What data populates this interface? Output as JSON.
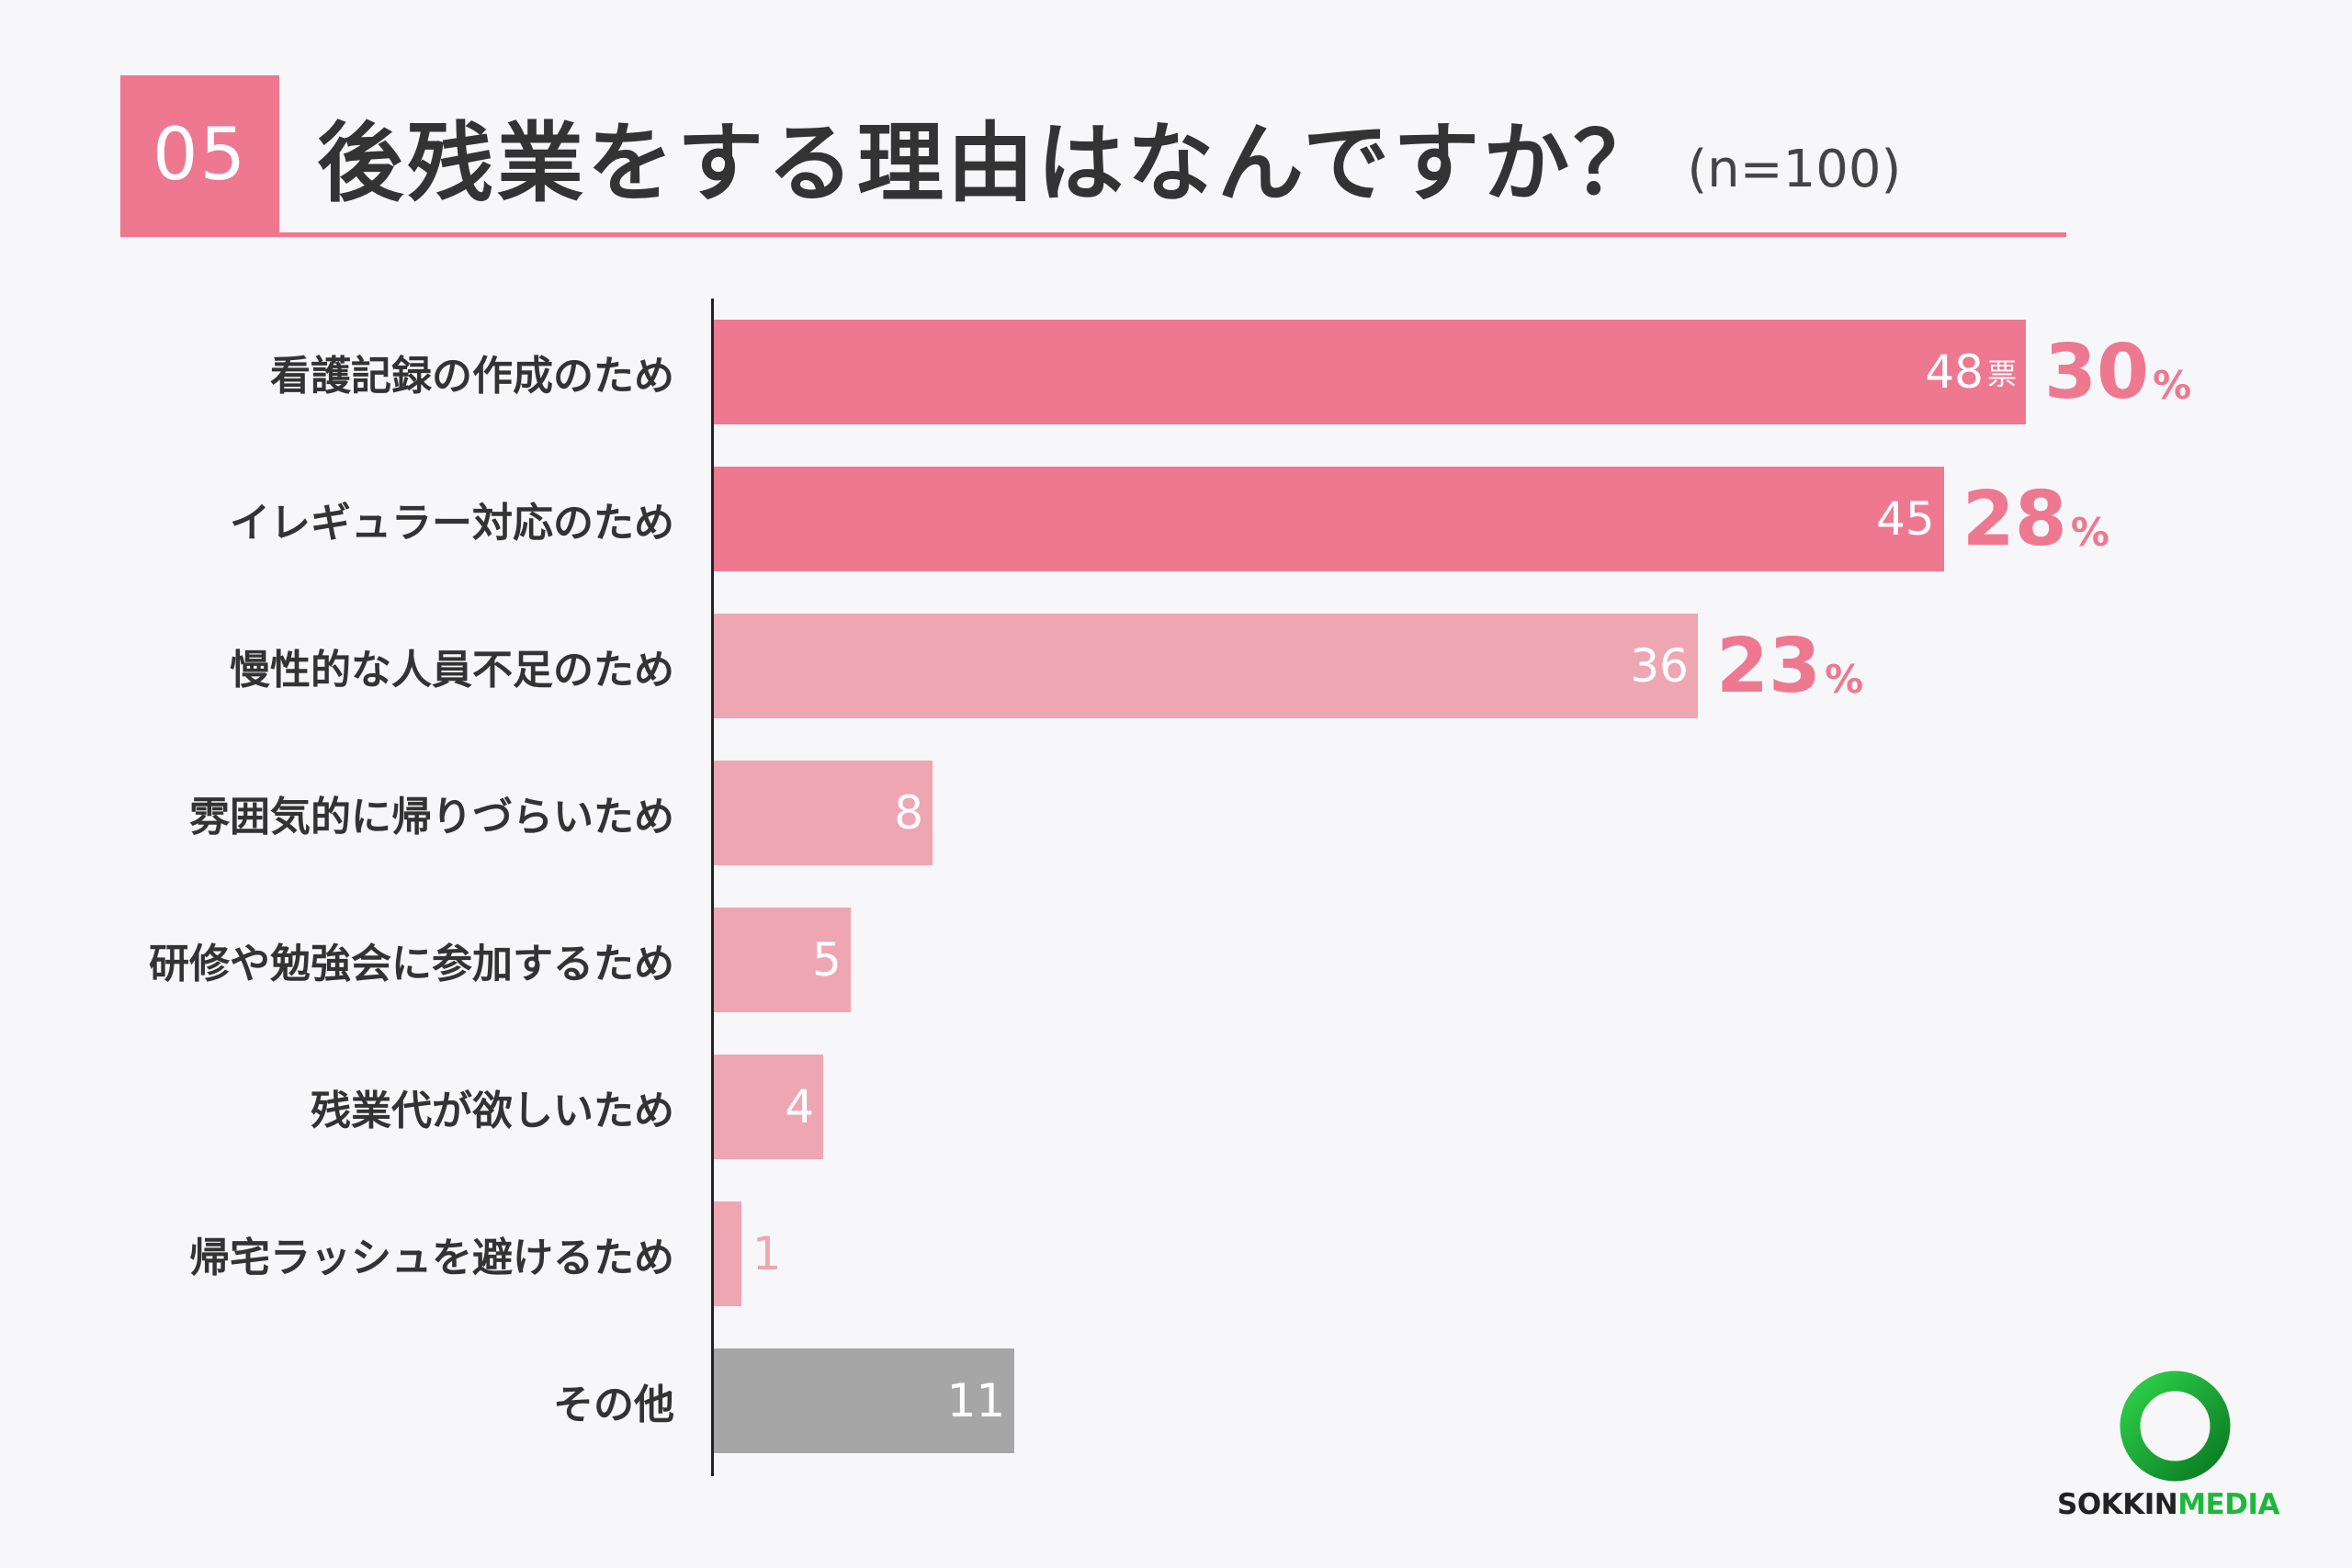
{
  "header": {
    "number": "05",
    "title": "後残業をする理由はなんですか？",
    "sample_size": "(n=100)"
  },
  "chart_data": {
    "type": "bar",
    "orientation": "horizontal",
    "title": "後残業をする理由はなんですか？",
    "n": 100,
    "xlim": [
      0,
      48
    ],
    "categories": [
      "看護記録の作成のため",
      "イレギュラー対応のため",
      "慢性的な人員不足のため",
      "雰囲気的に帰りづらいため",
      "研修や勉強会に参加するため",
      "残業代が欲しいため",
      "帰宅ラッシュを避けるため",
      "その他"
    ],
    "values": [
      48,
      45,
      36,
      8,
      5,
      4,
      1,
      11
    ],
    "vote_labels": [
      "48",
      "45",
      "36",
      "8",
      "5",
      "4",
      "1",
      "11"
    ],
    "vote_unit": "票",
    "percent_labels": [
      "30",
      "28",
      "23"
    ],
    "percent_unit": "%",
    "colors": [
      "#ee7890",
      "#ee7890",
      "#efa6b3",
      "#efa6b3",
      "#efa6b3",
      "#efa6b3",
      "#efa6b3",
      "#a6a6a6"
    ]
  },
  "logo": {
    "text_a": "SOKKIN",
    "text_b": "MEDIA",
    "ring_color": "#1db83a"
  }
}
